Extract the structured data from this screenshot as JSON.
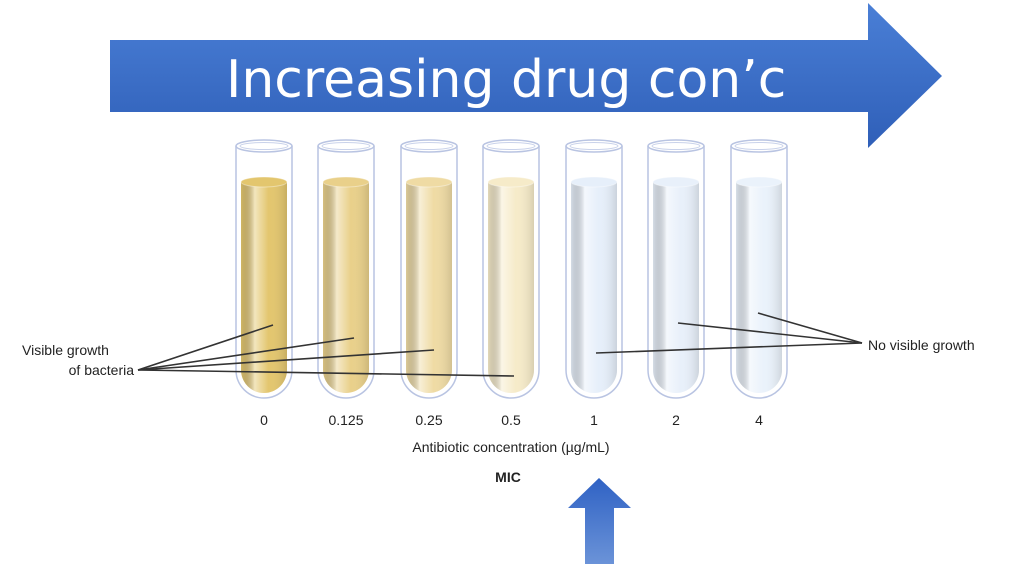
{
  "banner": {
    "text": "Increasing drug con’c",
    "color": "#3a6cc8"
  },
  "tubes": [
    {
      "label": "0",
      "state": "growth",
      "color": "#e3c66e"
    },
    {
      "label": "0.125",
      "state": "growth",
      "color": "#e9d08a"
    },
    {
      "label": "0.25",
      "state": "growth",
      "color": "#efdba4"
    },
    {
      "label": "0.5",
      "state": "growth",
      "color": "#f6ebc9"
    },
    {
      "label": "1",
      "state": "no-growth",
      "color": "#e6effa"
    },
    {
      "label": "2",
      "state": "no-growth",
      "color": "#e8f0fa"
    },
    {
      "label": "4",
      "state": "no-growth",
      "color": "#eaf2fb"
    }
  ],
  "axis_label": "Antibiotic concentration (µg/mL)",
  "left_label": {
    "line1": "Visible growth",
    "line2": "of bacteria"
  },
  "right_label": "No visible growth",
  "mic_label": "MIC"
}
